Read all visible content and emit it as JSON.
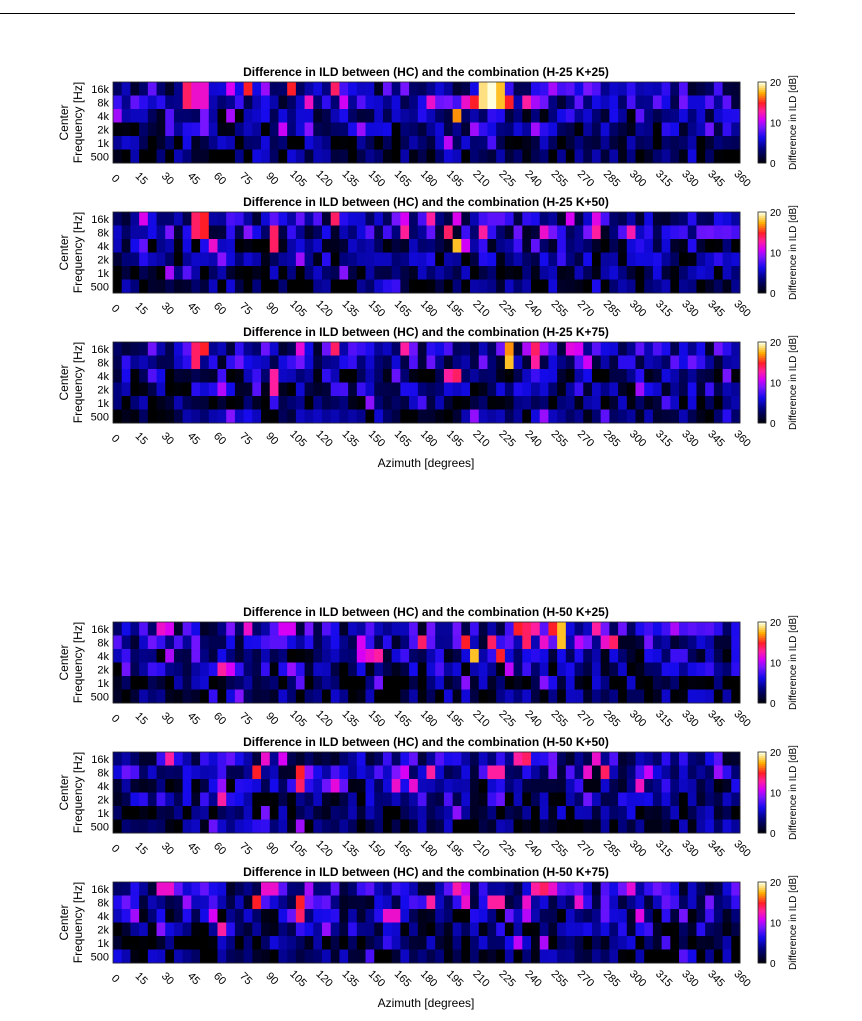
{
  "chart_data": [
    {
      "type": "heatmap",
      "title": "Difference in ILD between (HC) and the combination (H-25 K+25)",
      "ylabel_line1": "Center",
      "ylabel_line2": "Frequency [Hz]",
      "xlabel": "",
      "colorbar_label": "Difference in ILD [dB]",
      "colorbar_ticks": [
        "0",
        "10",
        "20"
      ],
      "clim": [
        0,
        20
      ],
      "xticks": [
        "0",
        "15",
        "30",
        "45",
        "60",
        "75",
        "90",
        "105",
        "120",
        "135",
        "150",
        "165",
        "180",
        "195",
        "210",
        "225",
        "240",
        "255",
        "270",
        "285",
        "300",
        "315",
        "330",
        "345",
        "360"
      ],
      "yticks": [
        "16k",
        "8k",
        "4k",
        "2k",
        "1k",
        "500"
      ],
      "seed": 11,
      "hotspots": [
        [
          8,
          [
            0,
            1
          ],
          14
        ],
        [
          9,
          [
            0,
            1
          ],
          12
        ],
        [
          10,
          [
            0,
            1
          ],
          12
        ],
        [
          13,
          [
            0
          ],
          11
        ],
        [
          15,
          [
            0
          ],
          15
        ],
        [
          20,
          [
            0
          ],
          15
        ],
        [
          25,
          [
            0
          ],
          14
        ],
        [
          36,
          [
            1
          ],
          12
        ],
        [
          38,
          [
            1
          ],
          9
        ],
        [
          39,
          [
            2
          ],
          17
        ],
        [
          40,
          [
            1
          ],
          12
        ],
        [
          41,
          [
            1
          ],
          15
        ],
        [
          42,
          [
            0,
            1
          ],
          19
        ],
        [
          43,
          [
            0,
            1
          ],
          20
        ],
        [
          44,
          [
            0,
            1
          ],
          18
        ],
        [
          45,
          [
            1
          ],
          15
        ],
        [
          47,
          [
            1
          ],
          13
        ],
        [
          48,
          [
            1
          ],
          10
        ],
        [
          10,
          [
            2,
            3
          ],
          9
        ],
        [
          6,
          [
            2,
            3
          ],
          8
        ]
      ]
    },
    {
      "type": "heatmap",
      "title": "Difference in ILD between (HC) and the combination (H-25 K+50)",
      "ylabel_line1": "Center",
      "ylabel_line2": "Frequency [Hz]",
      "xlabel": "",
      "colorbar_label": "Difference in ILD [dB]",
      "colorbar_ticks": [
        "0",
        "10",
        "20"
      ],
      "clim": [
        0,
        20
      ],
      "xticks": [
        "0",
        "15",
        "30",
        "45",
        "60",
        "75",
        "90",
        "105",
        "120",
        "135",
        "150",
        "165",
        "180",
        "195",
        "210",
        "225",
        "240",
        "255",
        "270",
        "285",
        "300",
        "315",
        "330",
        "345",
        "360"
      ],
      "yticks": [
        "16k",
        "8k",
        "4k",
        "2k",
        "1k",
        "500"
      ],
      "seed": 23,
      "hotspots": [
        [
          9,
          [
            0,
            1
          ],
          14
        ],
        [
          10,
          [
            0,
            1
          ],
          15
        ],
        [
          11,
          [
            2
          ],
          12
        ],
        [
          18,
          [
            1,
            2
          ],
          14
        ],
        [
          25,
          [
            0
          ],
          14
        ],
        [
          33,
          [
            0
          ],
          11
        ],
        [
          36,
          [
            0
          ],
          13
        ],
        [
          38,
          [
            1
          ],
          14
        ],
        [
          39,
          [
            2
          ],
          18
        ],
        [
          42,
          [
            1
          ],
          13
        ],
        [
          49,
          [
            1
          ],
          12
        ],
        [
          52,
          [
            0
          ],
          11
        ],
        [
          55,
          [
            1
          ],
          13
        ]
      ]
    },
    {
      "type": "heatmap",
      "title": "Difference in ILD between (HC) and the combination (H-25 K+75)",
      "ylabel_line1": "Center",
      "ylabel_line2": "Frequency [Hz]",
      "xlabel": "Azimuth [degrees]",
      "colorbar_label": "Difference in ILD [dB]",
      "colorbar_ticks": [
        "0",
        "10",
        "20"
      ],
      "clim": [
        0,
        20
      ],
      "xticks": [
        "0",
        "15",
        "30",
        "45",
        "60",
        "75",
        "90",
        "105",
        "120",
        "135",
        "150",
        "165",
        "180",
        "195",
        "210",
        "225",
        "240",
        "255",
        "270",
        "285",
        "300",
        "315",
        "330",
        "345",
        "360"
      ],
      "yticks": [
        "16k",
        "8k",
        "4k",
        "2k",
        "1k",
        "500"
      ],
      "seed": 37,
      "hotspots": [
        [
          9,
          [
            0,
            1
          ],
          14
        ],
        [
          10,
          [
            0
          ],
          15
        ],
        [
          18,
          [
            2,
            3
          ],
          13
        ],
        [
          25,
          [
            0
          ],
          14
        ],
        [
          33,
          [
            0
          ],
          13
        ],
        [
          38,
          [
            2
          ],
          13
        ],
        [
          39,
          [
            2
          ],
          14
        ],
        [
          45,
          [
            0
          ],
          17
        ],
        [
          45,
          [
            1
          ],
          18
        ],
        [
          48,
          [
            0
          ],
          14
        ],
        [
          48,
          [
            1
          ],
          13
        ],
        [
          53,
          [
            0
          ],
          11
        ]
      ]
    },
    {
      "type": "heatmap",
      "title": "Difference in ILD between (HC) and the combination (H-50 K+25)",
      "ylabel_line1": "Center",
      "ylabel_line2": "Frequency [Hz]",
      "xlabel": "",
      "colorbar_label": "Difference in ILD [dB]",
      "colorbar_ticks": [
        "0",
        "10",
        "20"
      ],
      "clim": [
        0,
        20
      ],
      "xticks": [
        "0",
        "15",
        "30",
        "45",
        "60",
        "75",
        "90",
        "105",
        "120",
        "135",
        "150",
        "165",
        "180",
        "195",
        "210",
        "225",
        "240",
        "255",
        "270",
        "285",
        "300",
        "315",
        "330",
        "345",
        "360"
      ],
      "yticks": [
        "16k",
        "8k",
        "4k",
        "2k",
        "1k",
        "500"
      ],
      "seed": 41,
      "hotspots": [
        [
          5,
          [
            0
          ],
          12
        ],
        [
          6,
          [
            0
          ],
          11
        ],
        [
          12,
          [
            3
          ],
          13
        ],
        [
          13,
          [
            3
          ],
          11
        ],
        [
          15,
          [
            0
          ],
          12
        ],
        [
          19,
          [
            0
          ],
          11
        ],
        [
          20,
          [
            0
          ],
          11
        ],
        [
          28,
          [
            1,
            2
          ],
          11
        ],
        [
          29,
          [
            2
          ],
          12
        ],
        [
          30,
          [
            2
          ],
          13
        ],
        [
          35,
          [
            1
          ],
          14
        ],
        [
          40,
          [
            1
          ],
          15
        ],
        [
          41,
          [
            2
          ],
          18
        ],
        [
          43,
          [
            1
          ],
          14
        ],
        [
          44,
          [
            2
          ],
          15
        ],
        [
          46,
          [
            0
          ],
          15
        ],
        [
          47,
          [
            0,
            1
          ],
          14
        ],
        [
          48,
          [
            0
          ],
          13
        ],
        [
          49,
          [
            1
          ],
          12
        ],
        [
          50,
          [
            0
          ],
          15
        ],
        [
          51,
          [
            0
          ],
          18
        ],
        [
          51,
          [
            1
          ],
          18
        ],
        [
          55,
          [
            0
          ],
          13
        ],
        [
          56,
          [
            1
          ],
          12
        ],
        [
          57,
          [
            1
          ],
          14
        ]
      ]
    },
    {
      "type": "heatmap",
      "title": "Difference in ILD between (HC) and the combination (H-50 K+50)",
      "ylabel_line1": "Center",
      "ylabel_line2": "Frequency [Hz]",
      "xlabel": "",
      "colorbar_label": "Difference in ILD [dB]",
      "colorbar_ticks": [
        "0",
        "10",
        "20"
      ],
      "clim": [
        0,
        20
      ],
      "xticks": [
        "0",
        "15",
        "30",
        "45",
        "60",
        "75",
        "90",
        "105",
        "120",
        "135",
        "150",
        "165",
        "180",
        "195",
        "210",
        "225",
        "240",
        "255",
        "270",
        "285",
        "300",
        "315",
        "330",
        "345",
        "360"
      ],
      "yticks": [
        "16k",
        "8k",
        "4k",
        "2k",
        "1k",
        "500"
      ],
      "seed": 53,
      "hotspots": [
        [
          6,
          [
            0
          ],
          13
        ],
        [
          12,
          [
            3
          ],
          13
        ],
        [
          16,
          [
            1
          ],
          15
        ],
        [
          17,
          [
            0
          ],
          12
        ],
        [
          19,
          [
            0
          ],
          11
        ],
        [
          21,
          [
            1
          ],
          15
        ],
        [
          21,
          [
            2
          ],
          14
        ],
        [
          32,
          [
            2
          ],
          12
        ],
        [
          33,
          [
            1
          ],
          11
        ],
        [
          36,
          [
            1
          ],
          13
        ],
        [
          43,
          [
            1
          ],
          13
        ],
        [
          44,
          [
            1
          ],
          13
        ],
        [
          46,
          [
            0
          ],
          13
        ],
        [
          47,
          [
            0
          ],
          14
        ],
        [
          54,
          [
            1
          ],
          12
        ],
        [
          55,
          [
            0
          ],
          12
        ],
        [
          56,
          [
            1
          ],
          14
        ]
      ]
    },
    {
      "type": "heatmap",
      "title": "Difference in ILD between (HC) and the combination (H-50 K+75)",
      "ylabel_line1": "Center",
      "ylabel_line2": "Frequency [Hz]",
      "xlabel": "Azimuth [degrees]",
      "colorbar_label": "Difference in ILD [dB]",
      "colorbar_ticks": [
        "0",
        "10",
        "20"
      ],
      "clim": [
        0,
        20
      ],
      "xticks": [
        "0",
        "15",
        "30",
        "45",
        "60",
        "75",
        "90",
        "105",
        "120",
        "135",
        "150",
        "165",
        "180",
        "195",
        "210",
        "225",
        "240",
        "255",
        "270",
        "285",
        "300",
        "315",
        "330",
        "345",
        "360"
      ],
      "yticks": [
        "16k",
        "8k",
        "4k",
        "2k",
        "1k",
        "500"
      ],
      "seed": 67,
      "hotspots": [
        [
          5,
          [
            0
          ],
          12
        ],
        [
          6,
          [
            0
          ],
          12
        ],
        [
          12,
          [
            3
          ],
          13
        ],
        [
          16,
          [
            1
          ],
          15
        ],
        [
          17,
          [
            0
          ],
          12
        ],
        [
          18,
          [
            0
          ],
          12
        ],
        [
          21,
          [
            1
          ],
          15
        ],
        [
          21,
          [
            2
          ],
          14
        ],
        [
          31,
          [
            2
          ],
          12
        ],
        [
          32,
          [
            2
          ],
          12
        ],
        [
          36,
          [
            1
          ],
          13
        ],
        [
          40,
          [
            1
          ],
          12
        ],
        [
          43,
          [
            1
          ],
          13
        ],
        [
          44,
          [
            1
          ],
          13
        ],
        [
          47,
          [
            1
          ],
          12
        ],
        [
          48,
          [
            0
          ],
          13
        ],
        [
          49,
          [
            0
          ],
          14
        ],
        [
          50,
          [
            0
          ],
          12
        ],
        [
          53,
          [
            1
          ],
          12
        ]
      ]
    }
  ]
}
